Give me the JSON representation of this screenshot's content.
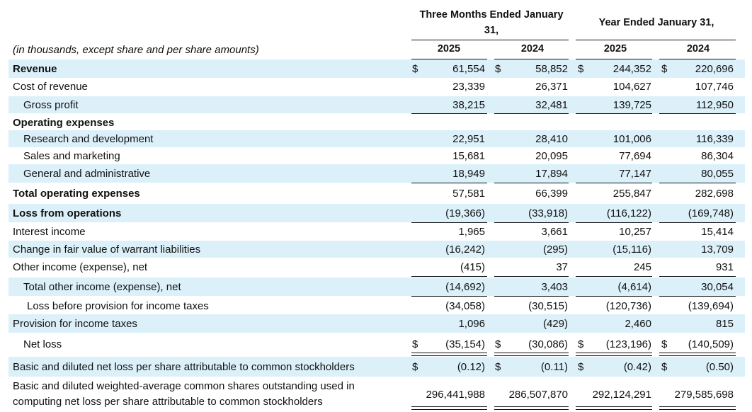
{
  "header": {
    "three_months": "Three Months Ended January 31,",
    "year": "Year Ended January 31,",
    "units_note": "(in thousands, except share and per share amounts)",
    "years": [
      "2025",
      "2024",
      "2025",
      "2024"
    ]
  },
  "rows": [
    {
      "label": "Revenue",
      "style": "bold",
      "shade": true,
      "dollar": true,
      "values": [
        "61,554",
        "58,852",
        "244,352",
        "220,696"
      ]
    },
    {
      "label": "Cost of revenue",
      "style": "normal",
      "shade": false,
      "dollar": false,
      "values": [
        "23,339",
        "26,371",
        "104,627",
        "107,746"
      ]
    },
    {
      "label": "Gross profit",
      "style": "indent1",
      "shade": true,
      "dollar": false,
      "values": [
        "38,215",
        "32,481",
        "139,725",
        "112,950"
      ]
    },
    {
      "label": "Operating expenses",
      "style": "bold",
      "shade": false,
      "dollar": false,
      "values": [
        "",
        "",
        "",
        ""
      ]
    },
    {
      "label": "Research and development",
      "style": "indent1",
      "shade": true,
      "dollar": false,
      "values": [
        "22,951",
        "28,410",
        "101,006",
        "116,339"
      ]
    },
    {
      "label": "Sales and marketing",
      "style": "indent1",
      "shade": false,
      "dollar": false,
      "values": [
        "15,681",
        "20,095",
        "77,694",
        "86,304"
      ]
    },
    {
      "label": "General and administrative",
      "style": "indent1",
      "shade": true,
      "dollar": false,
      "values": [
        "18,949",
        "17,894",
        "77,147",
        "80,055"
      ]
    },
    {
      "label": "Total operating expenses",
      "style": "bold",
      "shade": false,
      "dollar": false,
      "values": [
        "57,581",
        "66,399",
        "255,847",
        "282,698"
      ]
    },
    {
      "label": "Loss from operations",
      "style": "bold",
      "shade": true,
      "dollar": false,
      "values": [
        "(19,366)",
        "(33,918)",
        "(116,122)",
        "(169,748)"
      ]
    },
    {
      "label": "Interest income",
      "style": "normal",
      "shade": false,
      "dollar": false,
      "values": [
        "1,965",
        "3,661",
        "10,257",
        "15,414"
      ]
    },
    {
      "label": "Change in fair value of warrant liabilities",
      "style": "normal",
      "shade": true,
      "dollar": false,
      "values": [
        "(16,242)",
        "(295)",
        "(15,116)",
        "13,709"
      ]
    },
    {
      "label": "Other income (expense), net",
      "style": "normal",
      "shade": false,
      "dollar": false,
      "values": [
        "(415)",
        "37",
        "245",
        "931"
      ]
    },
    {
      "label": "Total other income (expense), net",
      "style": "indent1",
      "shade": true,
      "dollar": false,
      "values": [
        "(14,692)",
        "3,403",
        "(4,614)",
        "30,054"
      ]
    },
    {
      "label": "Loss before provision for income taxes",
      "style": "indent2",
      "shade": false,
      "dollar": false,
      "values": [
        "(34,058)",
        "(30,515)",
        "(120,736)",
        "(139,694)"
      ]
    },
    {
      "label": "Provision for income taxes",
      "style": "normal",
      "shade": true,
      "dollar": false,
      "values": [
        "1,096",
        "(429)",
        "2,460",
        "815"
      ]
    },
    {
      "label": "Net loss",
      "style": "indent1",
      "shade": false,
      "dollar": true,
      "values": [
        "(35,154)",
        "(30,086)",
        "(123,196)",
        "(140,509)"
      ]
    },
    {
      "label": "Basic and diluted net loss per share attributable to common stockholders",
      "style": "normal",
      "shade": true,
      "dollar": true,
      "values": [
        "(0.12)",
        "(0.11)",
        "(0.42)",
        "(0.50)"
      ]
    },
    {
      "label": "Basic and diluted weighted-average common shares outstanding used in computing net loss per share attributable to common stockholders",
      "style": "normal",
      "shade": false,
      "dollar": false,
      "values": [
        "296,441,988",
        "286,507,870",
        "292,124,291",
        "279,585,698"
      ]
    }
  ],
  "currency_symbol": "$"
}
